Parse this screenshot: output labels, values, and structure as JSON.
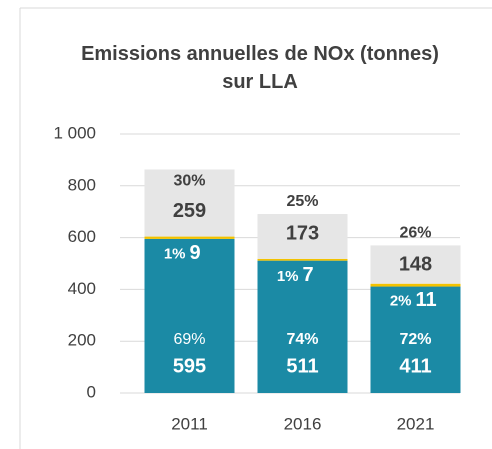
{
  "chart_data": {
    "type": "stacked_bar",
    "title": "Emissions annuelles de NOx (tonnes) sur LLA",
    "categories": [
      "2011",
      "2016",
      "2021"
    ],
    "series": [
      {
        "color": "#1b8aa5",
        "values": [
          595,
          511,
          411
        ],
        "percent_labels": [
          "69%",
          "74%",
          "72%"
        ]
      },
      {
        "color": "#f2c200",
        "values": [
          9,
          7,
          11
        ],
        "percent_labels": [
          "1%",
          "1%",
          "2%"
        ]
      },
      {
        "color": "#e6e6e6",
        "values": [
          259,
          173,
          148
        ],
        "percent_labels": [
          "30%",
          "25%",
          "26%"
        ]
      }
    ],
    "ylim": [
      0,
      1000
    ],
    "yticks": [
      0,
      200,
      400,
      600,
      800,
      {
        "value": 1000,
        "label": "1 000"
      }
    ],
    "grid": true
  }
}
